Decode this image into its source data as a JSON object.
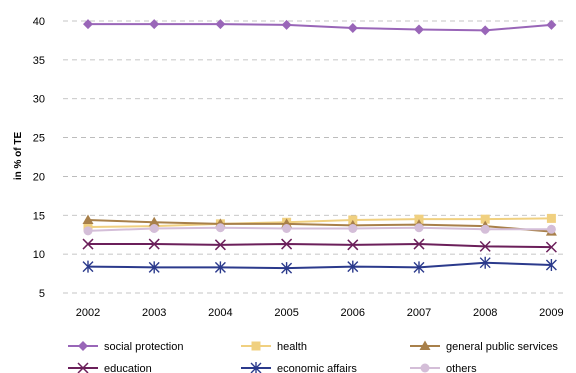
{
  "chart_data": {
    "type": "line",
    "title": "",
    "xlabel": "",
    "ylabel": "in % of TE",
    "ylim": [
      5,
      40
    ],
    "yticks": [
      5,
      10,
      15,
      20,
      25,
      30,
      35,
      40
    ],
    "grid": "horizontal dashed",
    "legend_position": "bottom",
    "x": [
      "2002",
      "2003",
      "2004",
      "2005",
      "2006",
      "2007",
      "2008",
      "2009"
    ],
    "series": [
      {
        "name": "social protection",
        "color": "#9966B8",
        "marker": "diamond",
        "values": [
          39.6,
          39.6,
          39.6,
          39.5,
          39.1,
          38.9,
          38.8,
          39.5
        ]
      },
      {
        "name": "health",
        "color": "#F0D080",
        "marker": "square",
        "values": [
          13.5,
          13.6,
          13.9,
          14.1,
          14.4,
          14.5,
          14.5,
          14.6
        ]
      },
      {
        "name": "general public services",
        "color": "#A8804A",
        "marker": "triangle",
        "values": [
          14.4,
          14.1,
          13.9,
          13.9,
          13.7,
          13.8,
          13.6,
          12.9
        ]
      },
      {
        "name": "education",
        "color": "#6B1F5A",
        "marker": "x",
        "values": [
          11.3,
          11.3,
          11.2,
          11.3,
          11.2,
          11.3,
          11.0,
          10.9
        ]
      },
      {
        "name": "economic affairs",
        "color": "#2B3A8C",
        "marker": "asterisk",
        "values": [
          8.4,
          8.3,
          8.3,
          8.2,
          8.4,
          8.3,
          8.9,
          8.6
        ]
      },
      {
        "name": "others",
        "color": "#D4BED8",
        "marker": "circle",
        "values": [
          13.0,
          13.3,
          13.4,
          13.3,
          13.3,
          13.4,
          13.2,
          13.2
        ]
      }
    ]
  }
}
